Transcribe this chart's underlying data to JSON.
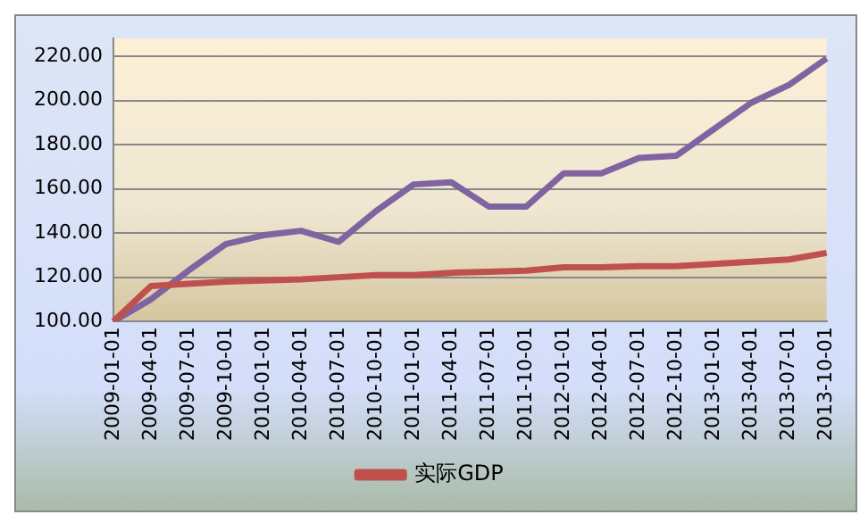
{
  "chart_data": {
    "type": "line",
    "categories": [
      "2009-01-01",
      "2009-04-01",
      "2009-07-01",
      "2009-10-01",
      "2010-01-01",
      "2010-04-01",
      "2010-07-01",
      "2010-10-01",
      "2011-01-01",
      "2011-04-01",
      "2011-07-01",
      "2011-10-01",
      "2012-01-01",
      "2012-04-01",
      "2012-07-01",
      "2012-10-01",
      "2013-01-01",
      "2013-04-01",
      "2013-07-01",
      "2013-10-01"
    ],
    "series": [
      {
        "name": "实际GDP",
        "color": "#c0504d",
        "values": [
          100,
          116,
          117,
          118,
          118.5,
          119,
          120,
          121,
          121,
          122,
          122.5,
          123,
          124.5,
          124.5,
          125,
          125,
          126,
          127,
          128,
          131
        ]
      },
      {
        "color": "#8064a2",
        "values": [
          100,
          110,
          123,
          135,
          139,
          141,
          136,
          150,
          162,
          163,
          152,
          152,
          167,
          167,
          174,
          175,
          187,
          199,
          207,
          219
        ]
      }
    ],
    "ylim": [
      100,
      228
    ],
    "yticks": [
      {
        "value": 100,
        "label": "100.00"
      },
      {
        "value": 120,
        "label": "120.00"
      },
      {
        "value": 140,
        "label": "140.00"
      },
      {
        "value": 160,
        "label": "160.00"
      },
      {
        "value": 180,
        "label": "180.00"
      },
      {
        "value": 200,
        "label": "200.00"
      },
      {
        "value": 220,
        "label": "220.00"
      }
    ],
    "grid": "y",
    "legend": "bottom",
    "marker": "none",
    "line_style": "solid"
  }
}
